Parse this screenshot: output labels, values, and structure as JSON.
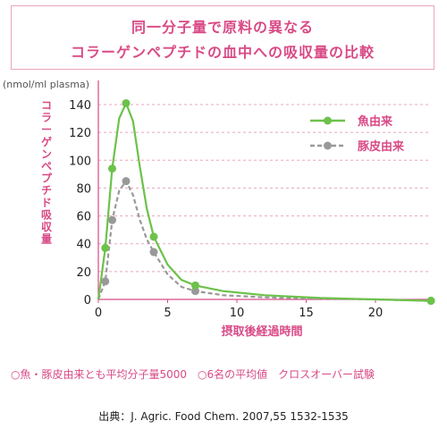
{
  "title": {
    "line1": "同一分子量で原料の異なる",
    "line2": "コラーゲンペプチドの血中への吸収量の比較"
  },
  "note": "○魚・豚皮由来とも平均分子量5000　○6名の平均値　クロスオーバー試験",
  "source": "出典：J. Agric. Food Chem. 2007,55 1532-1535",
  "colors": {
    "accent": "#d94a86",
    "fish": "#6cc24a",
    "pig": "#999999",
    "grid": "#e8a5c0"
  },
  "chart_data": {
    "type": "line",
    "xlabel": "摂取後経過時間",
    "ylabel": "コラーゲンペプチド吸収量",
    "yunit": "(nmol/ml plasma)",
    "xlim": [
      0,
      24
    ],
    "ylim": [
      0,
      140
    ],
    "xticks": [
      0,
      5,
      10,
      15,
      20
    ],
    "yticks": [
      0,
      20,
      40,
      60,
      80,
      100,
      120,
      140
    ],
    "grid": "horizontal dashed",
    "legend_position": "top-right",
    "series": [
      {
        "name": "魚由来",
        "style": "solid",
        "points": [
          [
            0,
            0
          ],
          [
            0.5,
            37
          ],
          [
            1,
            94
          ],
          [
            2,
            141
          ],
          [
            4,
            45
          ],
          [
            7,
            10
          ],
          [
            24,
            -1
          ]
        ],
        "curve": [
          [
            0,
            0
          ],
          [
            0.5,
            37
          ],
          [
            1,
            94
          ],
          [
            1.5,
            130
          ],
          [
            2,
            141
          ],
          [
            2.5,
            128
          ],
          [
            3,
            95
          ],
          [
            3.5,
            65
          ],
          [
            4,
            45
          ],
          [
            5,
            25
          ],
          [
            6,
            14
          ],
          [
            7,
            10
          ],
          [
            9,
            6
          ],
          [
            12,
            3
          ],
          [
            16,
            1
          ],
          [
            20,
            0
          ],
          [
            24,
            -1
          ]
        ]
      },
      {
        "name": "豚皮由来",
        "style": "dashed",
        "points": [
          [
            0,
            0
          ],
          [
            0.5,
            13
          ],
          [
            1,
            57
          ],
          [
            2,
            85
          ],
          [
            4,
            34
          ],
          [
            7,
            6
          ],
          [
            24,
            -1
          ]
        ],
        "curve": [
          [
            0,
            0
          ],
          [
            0.5,
            13
          ],
          [
            1,
            57
          ],
          [
            1.5,
            78
          ],
          [
            2,
            85
          ],
          [
            2.5,
            75
          ],
          [
            3,
            57
          ],
          [
            3.5,
            43
          ],
          [
            4,
            34
          ],
          [
            5,
            18
          ],
          [
            6,
            9
          ],
          [
            7,
            6
          ],
          [
            9,
            3
          ],
          [
            12,
            1.5
          ],
          [
            16,
            0.5
          ],
          [
            20,
            0
          ],
          [
            24,
            -1
          ]
        ]
      }
    ]
  }
}
